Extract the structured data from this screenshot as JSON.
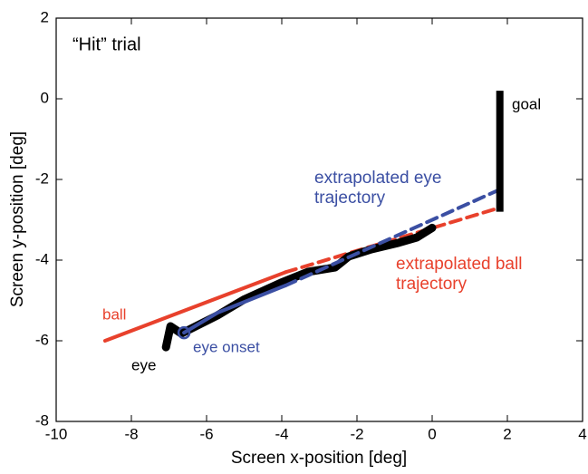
{
  "chart_data": {
    "type": "line",
    "title": "“Hit” trial",
    "xlabel": "Screen x-position [deg]",
    "ylabel": "Screen y-position [deg]",
    "xlim": [
      -10,
      4
    ],
    "xticks": [
      -10,
      -8,
      -6,
      -4,
      -2,
      0,
      2,
      4
    ],
    "ylim": [
      -8,
      2
    ],
    "yticks": [
      -8,
      -6,
      -4,
      -2,
      0,
      2
    ],
    "series": [
      {
        "name": "ball",
        "color": "#e8412c",
        "style": "solid",
        "x": [
          -8.7,
          -3.9
        ],
        "values": [
          -6.0,
          -4.3
        ]
      },
      {
        "name": "extrapolated ball trajectory",
        "color": "#e8412c",
        "style": "dashed",
        "x": [
          -3.9,
          1.8
        ],
        "values": [
          -4.3,
          -2.7
        ]
      },
      {
        "name": "eye",
        "color": "#000000",
        "style": "thick",
        "x": [
          -7.08,
          -6.96,
          -6.67,
          -5.71,
          -4.99,
          -4.02,
          -3.3,
          -2.58,
          -2.22,
          -1.61,
          -0.89,
          -0.41,
          0.0
        ],
        "values": [
          -6.16,
          -5.64,
          -5.82,
          -5.37,
          -4.97,
          -4.56,
          -4.29,
          -4.18,
          -3.91,
          -3.73,
          -3.57,
          -3.44,
          -3.2
        ]
      },
      {
        "name": "eye onset",
        "color": "#3b4fa3",
        "style": "solid",
        "x": [
          -6.6,
          -5.7,
          -3.9
        ],
        "values": [
          -5.8,
          -5.3,
          -4.63
        ]
      },
      {
        "name": "extrapolated eye trajectory",
        "color": "#3b4fa3",
        "style": "dashed",
        "x": [
          -3.9,
          1.8
        ],
        "values": [
          -4.63,
          -2.25
        ]
      },
      {
        "name": "goal",
        "color": "#000000",
        "style": "goal",
        "x": [
          1.8,
          1.8
        ],
        "values": [
          0.2,
          -2.8
        ]
      }
    ]
  }
}
